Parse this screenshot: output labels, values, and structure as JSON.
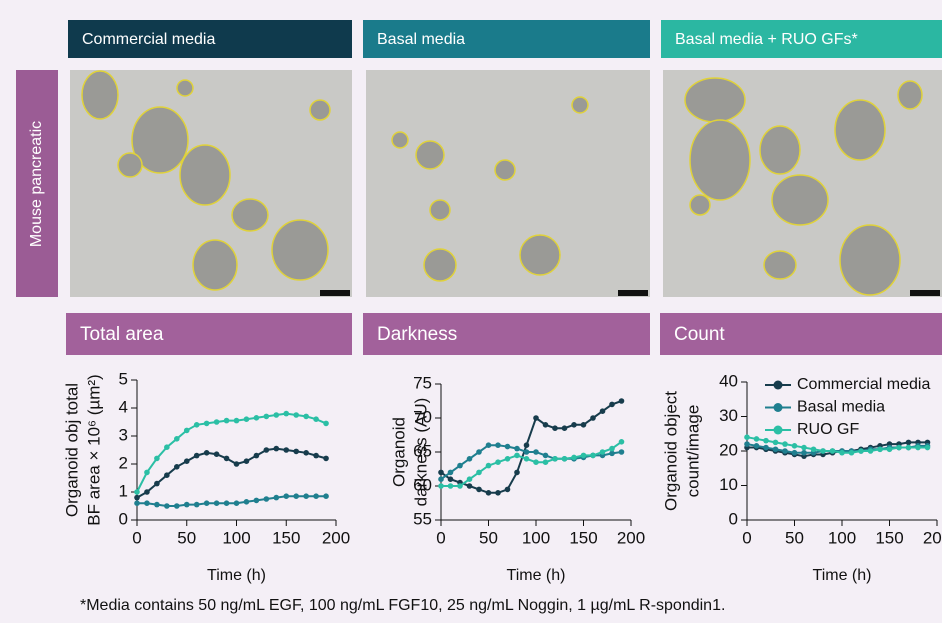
{
  "headers": [
    "Commercial media",
    "Basal media",
    "Basal media + RUO GFs*"
  ],
  "row_label": "Mouse pancreatic",
  "panel_titles": [
    "Total area",
    "Darkness",
    "Count"
  ],
  "chart_data": [
    {
      "type": "line",
      "y_label": [
        "Organoid obj total",
        "BF area × 10⁶ (µm²)"
      ],
      "x_label": "Time (h)",
      "x": [
        0,
        10,
        20,
        30,
        40,
        50,
        60,
        70,
        80,
        90,
        100,
        110,
        120,
        130,
        140,
        150,
        160,
        170,
        180,
        190
      ],
      "xlim": [
        0,
        200
      ],
      "xticks": [
        0,
        50,
        100,
        150,
        200
      ],
      "ylim": [
        0,
        5
      ],
      "yticks": [
        0,
        1,
        2,
        3,
        4,
        5
      ],
      "series": [
        {
          "color": "#173c4c",
          "values": [
            0.8,
            1.0,
            1.3,
            1.6,
            1.9,
            2.1,
            2.3,
            2.4,
            2.35,
            2.2,
            2.0,
            2.1,
            2.3,
            2.5,
            2.55,
            2.5,
            2.45,
            2.4,
            2.3,
            2.2
          ]
        },
        {
          "color": "#1f7f8f",
          "values": [
            0.6,
            0.6,
            0.55,
            0.5,
            0.5,
            0.55,
            0.55,
            0.6,
            0.6,
            0.6,
            0.6,
            0.65,
            0.7,
            0.75,
            0.8,
            0.85,
            0.85,
            0.85,
            0.85,
            0.85
          ]
        },
        {
          "color": "#2bbfa5",
          "values": [
            1.0,
            1.7,
            2.2,
            2.6,
            2.9,
            3.2,
            3.4,
            3.45,
            3.5,
            3.55,
            3.55,
            3.6,
            3.65,
            3.7,
            3.75,
            3.8,
            3.75,
            3.7,
            3.6,
            3.45
          ]
        }
      ]
    },
    {
      "type": "line",
      "y_label": [
        "Organoid",
        "darkness (AU)"
      ],
      "x_label": "Time (h)",
      "x": [
        0,
        10,
        20,
        30,
        40,
        50,
        60,
        70,
        80,
        90,
        100,
        110,
        120,
        130,
        140,
        150,
        160,
        170,
        180,
        190
      ],
      "xlim": [
        0,
        200
      ],
      "xticks": [
        0,
        50,
        100,
        150,
        200
      ],
      "ylim": [
        55,
        75
      ],
      "yticks": [
        55,
        60,
        65,
        70,
        75
      ],
      "series": [
        {
          "color": "#173c4c",
          "values": [
            62,
            61,
            60.5,
            60,
            59.5,
            59,
            59,
            59.5,
            62,
            66,
            70,
            69,
            68.5,
            68.5,
            69,
            69,
            70,
            71,
            72,
            72.5
          ]
        },
        {
          "color": "#1f7f8f",
          "values": [
            61,
            62,
            63,
            64,
            65,
            66,
            66,
            65.8,
            65.5,
            65,
            65,
            64.5,
            64,
            64,
            64,
            64.2,
            64.5,
            64.5,
            64.8,
            65
          ]
        },
        {
          "color": "#2bbfa5",
          "values": [
            60,
            60,
            60,
            61,
            62,
            63,
            63.5,
            64,
            64.5,
            64,
            63.5,
            63.5,
            64,
            64,
            64.2,
            64.5,
            64.5,
            65,
            65.5,
            66.5
          ]
        }
      ]
    },
    {
      "type": "line",
      "y_label": [
        "Organoid object",
        "count/image"
      ],
      "x_label": "Time (h)",
      "legend": "top-left",
      "x": [
        0,
        10,
        20,
        30,
        40,
        50,
        60,
        70,
        80,
        90,
        100,
        110,
        120,
        130,
        140,
        150,
        160,
        170,
        180,
        190
      ],
      "xlim": [
        0,
        200
      ],
      "xticks": [
        0,
        50,
        100,
        150,
        200
      ],
      "ylim": [
        0,
        40
      ],
      "yticks": [
        0,
        10,
        20,
        30,
        40
      ],
      "series": [
        {
          "name": "Commercial media",
          "color": "#173c4c",
          "values": [
            21,
            21,
            20.5,
            20,
            19.5,
            19,
            18.5,
            19,
            19,
            19.5,
            20,
            20,
            20.5,
            21,
            21.5,
            22,
            22,
            22.5,
            22.5,
            22.5
          ]
        },
        {
          "name": "Basal media",
          "color": "#1f7f8f",
          "values": [
            22,
            21.5,
            21,
            20.5,
            20,
            19.5,
            19.5,
            19.5,
            20,
            20,
            20,
            20,
            20,
            20.5,
            20.5,
            21,
            21,
            21,
            21.5,
            21.5
          ]
        },
        {
          "name": "RUO GF",
          "color": "#2bbfa5",
          "values": [
            24,
            23.5,
            23,
            22.5,
            22,
            21.5,
            21,
            20.5,
            20,
            20,
            19.5,
            19.5,
            20,
            20,
            20.5,
            20.5,
            21,
            21,
            21,
            21
          ]
        }
      ]
    }
  ],
  "footnote": "*Media contains 50 ng/mL EGF, 100 ng/mL FGF10, 25 ng/mL Noggin, 1 µg/mL R-spondin1."
}
